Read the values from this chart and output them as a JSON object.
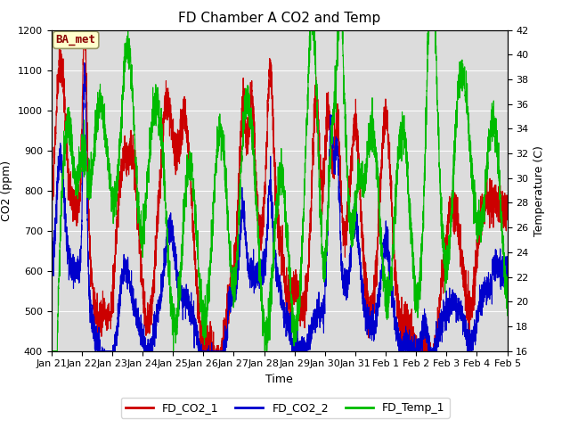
{
  "title": "FD Chamber A CO2 and Temp",
  "xlabel": "Time",
  "ylabel_left": "CO2 (ppm)",
  "ylabel_right": "Temperature (C)",
  "ylim_left": [
    400,
    1200
  ],
  "ylim_right": [
    16,
    42
  ],
  "yticks_left": [
    400,
    500,
    600,
    700,
    800,
    900,
    1000,
    1100,
    1200
  ],
  "yticks_right": [
    16,
    18,
    20,
    22,
    24,
    26,
    28,
    30,
    32,
    34,
    36,
    38,
    40,
    42
  ],
  "xtick_labels": [
    "Jan 21",
    "Jan 22",
    "Jan 23",
    "Jan 24",
    "Jan 25",
    "Jan 26",
    "Jan 27",
    "Jan 28",
    "Jan 29",
    "Jan 30",
    "Jan 31",
    "Feb 1",
    "Feb 2",
    "Feb 3",
    "Feb 4",
    "Feb 5"
  ],
  "color_co2_1": "#cc0000",
  "color_co2_2": "#0000cc",
  "color_temp": "#00bb00",
  "label_co2_1": "FD_CO2_1",
  "label_co2_2": "FD_CO2_2",
  "label_temp": "FD_Temp_1",
  "annotation_text": "BA_met",
  "bg_color": "#dcdcdc",
  "line_width": 0.8,
  "legend_fontsize": 9,
  "title_fontsize": 11,
  "tick_fontsize": 8,
  "axis_label_fontsize": 9
}
